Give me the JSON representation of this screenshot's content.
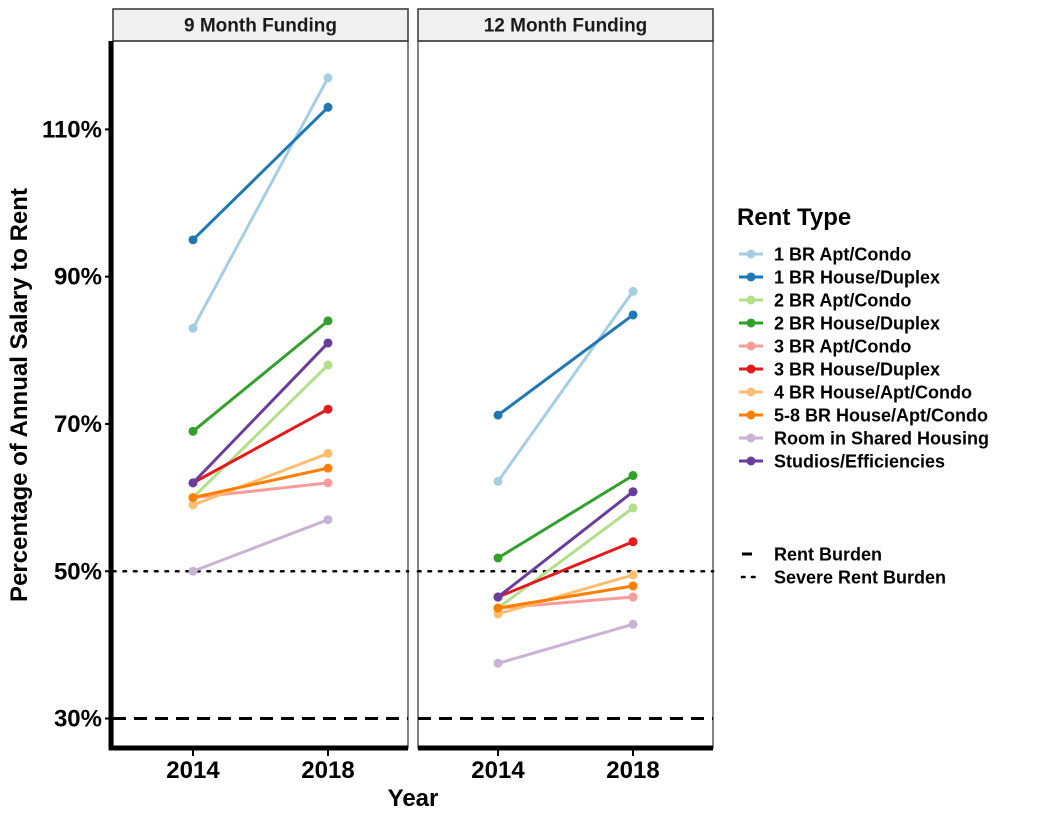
{
  "chart_data": {
    "type": "line",
    "xlabel": "Year",
    "ylabel": "Percentage of Annual Salary to Rent",
    "x": [
      "2014",
      "2018"
    ],
    "ylim": [
      26,
      122
    ],
    "yticks": [
      {
        "value": 30,
        "label": "30%"
      },
      {
        "value": 50,
        "label": "50%"
      },
      {
        "value": 70,
        "label": "70%"
      },
      {
        "value": 90,
        "label": "90%"
      },
      {
        "value": 110,
        "label": "110%"
      }
    ],
    "grid": false,
    "legend_position": "right",
    "legend_title": "Rent Type",
    "reference_lines": [
      {
        "name": "Rent Burden",
        "value": 30,
        "style": "dashed"
      },
      {
        "name": "Severe Rent Burden",
        "value": 50,
        "style": "dotted"
      }
    ],
    "facets": [
      {
        "label": "9 Month Funding",
        "series": [
          {
            "name": "1 BR Apt/Condo",
            "color": "#a6cee3",
            "values": [
              83,
              117
            ]
          },
          {
            "name": "1 BR House/Duplex",
            "color": "#1f78b4",
            "values": [
              95,
              113
            ]
          },
          {
            "name": "2 BR Apt/Condo",
            "color": "#b2df8a",
            "values": [
              60,
              78
            ]
          },
          {
            "name": "2 BR House/Duplex",
            "color": "#33a02c",
            "values": [
              69,
              84
            ]
          },
          {
            "name": "3 BR Apt/Condo",
            "color": "#fb9a99",
            "values": [
              60,
              62
            ]
          },
          {
            "name": "3 BR House/Duplex",
            "color": "#e31a1c",
            "values": [
              62,
              72
            ]
          },
          {
            "name": "4 BR House/Apt/Condo",
            "color": "#fdbf6f",
            "values": [
              59,
              66
            ]
          },
          {
            "name": "5-8 BR House/Apt/Condo",
            "color": "#ff7f00",
            "values": [
              60,
              64
            ]
          },
          {
            "name": "Room in Shared Housing",
            "color": "#cab2d6",
            "values": [
              50,
              57
            ]
          },
          {
            "name": "Studios/Efficiencies",
            "color": "#6a3d9a",
            "values": [
              62,
              81
            ]
          }
        ]
      },
      {
        "label": "12 Month Funding",
        "series": [
          {
            "name": "1 BR Apt/Condo",
            "color": "#a6cee3",
            "values": [
              62.2,
              88
            ]
          },
          {
            "name": "1 BR House/Duplex",
            "color": "#1f78b4",
            "values": [
              71.2,
              84.8
            ]
          },
          {
            "name": "2 BR Apt/Condo",
            "color": "#b2df8a",
            "values": [
              45,
              58.6
            ]
          },
          {
            "name": "2 BR House/Duplex",
            "color": "#33a02c",
            "values": [
              51.8,
              63
            ]
          },
          {
            "name": "3 BR Apt/Condo",
            "color": "#fb9a99",
            "values": [
              45,
              46.5
            ]
          },
          {
            "name": "3 BR House/Duplex",
            "color": "#e31a1c",
            "values": [
              46.5,
              54
            ]
          },
          {
            "name": "4 BR House/Apt/Condo",
            "color": "#fdbf6f",
            "values": [
              44.2,
              49.5
            ]
          },
          {
            "name": "5-8 BR House/Apt/Condo",
            "color": "#ff7f00",
            "values": [
              45,
              48
            ]
          },
          {
            "name": "Room in Shared Housing",
            "color": "#cab2d6",
            "values": [
              37.5,
              42.8
            ]
          },
          {
            "name": "Studios/Efficiencies",
            "color": "#6a3d9a",
            "values": [
              46.5,
              60.8
            ]
          }
        ]
      }
    ]
  }
}
